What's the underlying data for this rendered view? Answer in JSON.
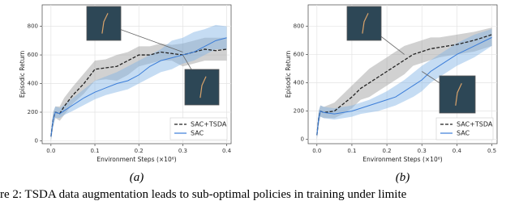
{
  "caption": "re 2: TSDA data augmentation leads to sub-optimal policies in training under limite",
  "chart_data": [
    {
      "type": "line",
      "subcaption": "(a)",
      "xlabel": "Environment Steps (×10⁶)",
      "ylabel": "Episodic Return",
      "x": [
        0,
        0.005,
        0.01,
        0.02,
        0.03,
        0.05,
        0.075,
        0.1,
        0.125,
        0.15,
        0.175,
        0.2,
        0.225,
        0.25,
        0.275,
        0.3,
        0.325,
        0.35,
        0.375,
        0.4
      ],
      "xlim": [
        -0.02,
        0.41
      ],
      "xticks": [
        {
          "value": 0,
          "label": "0.0"
        },
        0.1,
        0.2,
        0.3,
        0.4
      ],
      "ylim": [
        -20,
        950
      ],
      "yticks": [
        0,
        200,
        400,
        600,
        800
      ],
      "grid": true,
      "legend": "lower right",
      "series": [
        {
          "name": "SAC+TSDA",
          "color": "#222222",
          "band_color": "#999999",
          "dashed": true,
          "values": [
            30,
            150,
            200,
            190,
            240,
            320,
            400,
            500,
            510,
            520,
            560,
            600,
            600,
            620,
            610,
            600,
            620,
            640,
            630,
            640
          ],
          "lower": [
            0,
            100,
            160,
            140,
            180,
            260,
            330,
            420,
            430,
            420,
            460,
            520,
            540,
            560,
            560,
            520,
            540,
            560,
            560,
            560
          ],
          "upper": [
            60,
            200,
            240,
            240,
            300,
            380,
            470,
            560,
            570,
            600,
            620,
            660,
            660,
            680,
            670,
            680,
            700,
            720,
            720,
            720
          ]
        },
        {
          "name": "SAC",
          "color": "#3b7dd8",
          "band_color": "#7fb2e5",
          "dashed": false,
          "values": [
            30,
            150,
            200,
            190,
            210,
            250,
            300,
            340,
            370,
            400,
            420,
            460,
            520,
            560,
            580,
            600,
            620,
            660,
            700,
            720
          ],
          "lower": [
            0,
            100,
            160,
            160,
            180,
            210,
            250,
            290,
            320,
            340,
            360,
            400,
            440,
            480,
            500,
            540,
            560,
            600,
            640,
            640
          ],
          "upper": [
            60,
            200,
            240,
            230,
            250,
            300,
            360,
            420,
            450,
            480,
            520,
            560,
            600,
            640,
            700,
            720,
            760,
            780,
            810,
            800
          ]
        }
      ]
    },
    {
      "type": "line",
      "subcaption": "(b)",
      "xlabel": "Environment Steps (×10⁶)",
      "ylabel": "Episodic Return",
      "x": [
        0,
        0.005,
        0.01,
        0.02,
        0.05,
        0.075,
        0.1,
        0.125,
        0.15,
        0.175,
        0.2,
        0.225,
        0.25,
        0.275,
        0.3,
        0.325,
        0.35,
        0.375,
        0.4,
        0.45,
        0.5
      ],
      "xlim": [
        -0.025,
        0.515
      ],
      "xticks": [
        {
          "value": 0,
          "label": "0.0"
        },
        0.1,
        0.2,
        0.3,
        0.4,
        0.5
      ],
      "ylim": [
        -30,
        950
      ],
      "yticks": [
        0,
        200,
        400,
        600,
        800
      ],
      "grid": true,
      "legend": "lower right",
      "series": [
        {
          "name": "SAC+TSDA",
          "color": "#222222",
          "band_color": "#999999",
          "dashed": true,
          "values": [
            30,
            150,
            200,
            190,
            200,
            250,
            300,
            360,
            400,
            440,
            480,
            520,
            560,
            600,
            620,
            640,
            650,
            660,
            670,
            700,
            740
          ],
          "lower": [
            0,
            100,
            160,
            150,
            150,
            180,
            220,
            280,
            300,
            340,
            380,
            420,
            460,
            520,
            540,
            560,
            580,
            590,
            600,
            620,
            660
          ],
          "upper": [
            60,
            200,
            240,
            230,
            260,
            320,
            380,
            440,
            500,
            540,
            580,
            620,
            660,
            680,
            700,
            720,
            720,
            730,
            740,
            760,
            790
          ]
        },
        {
          "name": "SAC",
          "color": "#3b7dd8",
          "band_color": "#7fb2e5",
          "dashed": false,
          "values": [
            30,
            150,
            200,
            190,
            180,
            190,
            200,
            220,
            240,
            260,
            280,
            300,
            340,
            380,
            420,
            480,
            520,
            560,
            600,
            660,
            720
          ],
          "lower": [
            0,
            100,
            160,
            150,
            140,
            150,
            160,
            180,
            190,
            200,
            220,
            240,
            270,
            300,
            340,
            400,
            440,
            480,
            520,
            580,
            660
          ],
          "upper": [
            60,
            200,
            240,
            230,
            220,
            230,
            240,
            260,
            280,
            310,
            340,
            380,
            420,
            470,
            520,
            560,
            600,
            640,
            680,
            740,
            780
          ]
        }
      ]
    }
  ]
}
